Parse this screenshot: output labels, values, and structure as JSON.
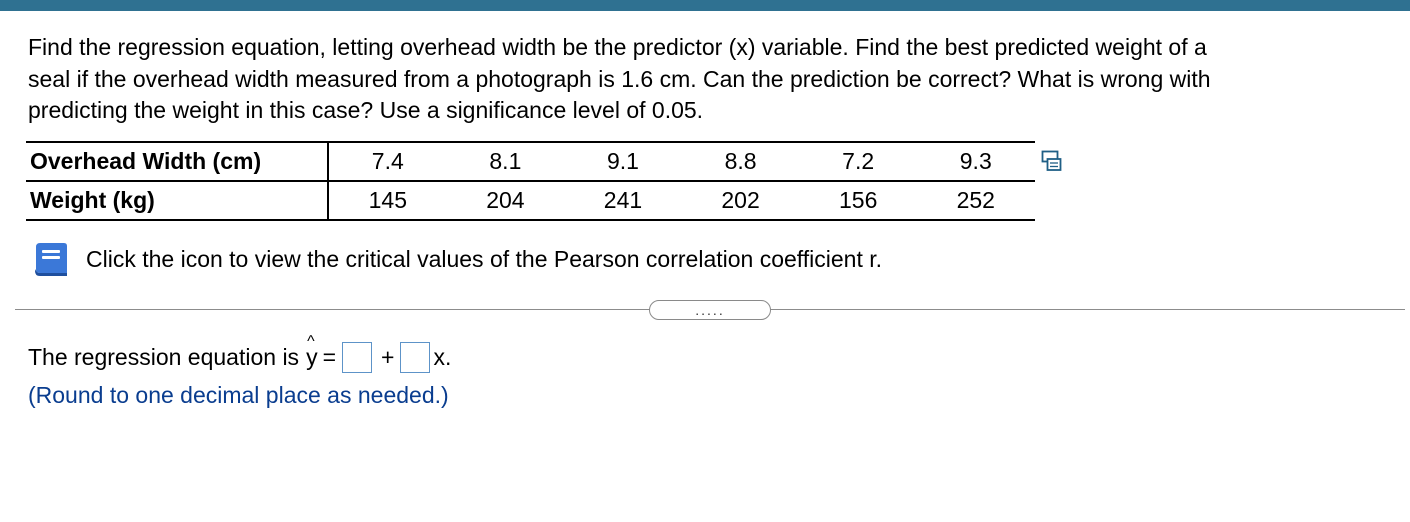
{
  "question": {
    "line1": "Find the regression equation, letting overhead width be the predictor (x) variable. Find the best predicted weight of a",
    "line2": "seal if the overhead width measured from a photograph is 1.6 cm. Can the prediction be correct? What is wrong with",
    "line3": "predicting the weight in this case? Use a significance level of 0.05."
  },
  "table": {
    "rows": [
      {
        "label": "Overhead Width (cm)",
        "values": [
          "7.4",
          "8.1",
          "9.1",
          "8.8",
          "7.2",
          "9.3"
        ]
      },
      {
        "label": "Weight (kg)",
        "values": [
          "145",
          "204",
          "241",
          "202",
          "156",
          "252"
        ]
      }
    ]
  },
  "icons": {
    "copy": "copy-data-icon",
    "book": "book-icon"
  },
  "info": {
    "text": "Click the icon to view the critical values of the Pearson correlation coefficient r."
  },
  "expand": {
    "label": "....."
  },
  "equation": {
    "prefix": "The regression equation is",
    "y": "y",
    "hat": "^",
    "equals": "=",
    "plus": "+",
    "suffix": "x.",
    "box1_value": "",
    "box2_value": ""
  },
  "hint": {
    "text": "(Round to one decimal place as needed.)"
  },
  "colors": {
    "top_bar": "#2f7191",
    "hint_text": "#0a3d8f",
    "input_border": "#5d93c8",
    "book_icon": "#3b78d8"
  }
}
